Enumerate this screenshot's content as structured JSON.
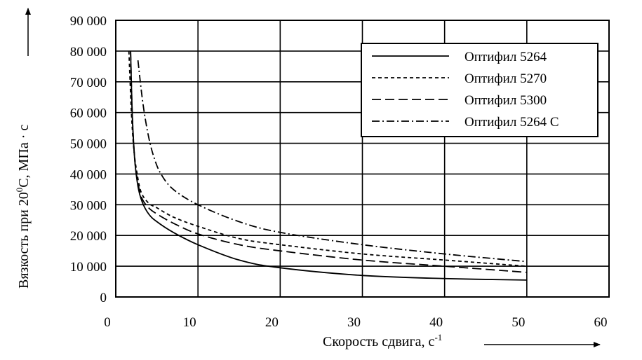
{
  "chart_data": {
    "type": "line",
    "title": "",
    "xlabel": "Скорость сдвига, с",
    "xlabel_sup": "-1",
    "ylabel": "Вязкость при 20",
    "ylabel_sup": "0",
    "ylabel_rest": "С, МПа · с",
    "xlim": [
      0,
      60
    ],
    "ylim": [
      0,
      90000
    ],
    "x_ticks": [
      0,
      10,
      20,
      30,
      40,
      50,
      60
    ],
    "x_tick_labels": [
      "0",
      "10",
      "20",
      "30",
      "40",
      "50",
      "60"
    ],
    "y_ticks": [
      0,
      10000,
      20000,
      30000,
      40000,
      50000,
      60000,
      70000,
      80000,
      90000
    ],
    "y_tick_labels": [
      "0",
      "10 000",
      "20 000",
      "30 000",
      "40 000",
      "50 000",
      "60 000",
      "70 000",
      "80 000",
      "90 000"
    ],
    "grid": true,
    "legend_position": "top-right",
    "series": [
      {
        "name": "Оптифил 5264",
        "dash": "solid",
        "x": [
          1.8,
          2.0,
          2.3,
          2.7,
          3.2,
          4,
          5,
          7,
          10,
          15,
          20,
          30,
          40,
          50
        ],
        "y": [
          80000,
          60000,
          45000,
          36000,
          31000,
          27000,
          24500,
          21000,
          17000,
          12000,
          9500,
          7000,
          6000,
          5500
        ]
      },
      {
        "name": "Оптифил 5270",
        "dash": "short",
        "x": [
          1.6,
          1.9,
          2.2,
          2.6,
          3.1,
          4,
          5,
          7,
          10,
          15,
          20,
          30,
          40,
          50
        ],
        "y": [
          80000,
          60000,
          48000,
          40000,
          34000,
          30500,
          29000,
          26000,
          23000,
          19000,
          17000,
          14000,
          12000,
          10000
        ]
      },
      {
        "name": "Оптифил 5300",
        "dash": "long",
        "x": [
          1.8,
          2.0,
          2.3,
          2.7,
          3.2,
          4,
          5,
          7,
          10,
          15,
          20,
          30,
          40,
          50
        ],
        "y": [
          80000,
          60000,
          45000,
          37000,
          32000,
          29000,
          27000,
          24000,
          20500,
          17000,
          15000,
          12000,
          10000,
          8000
        ]
      },
      {
        "name": "Оптифил 5264 С",
        "dash": "dashdot",
        "x": [
          2.7,
          3.3,
          4,
          4.7,
          5.5,
          7,
          10,
          15,
          20,
          30,
          40,
          50
        ],
        "y": [
          77000,
          63000,
          52000,
          45000,
          40000,
          35000,
          30000,
          24500,
          21000,
          17000,
          14000,
          11500
        ]
      }
    ]
  }
}
